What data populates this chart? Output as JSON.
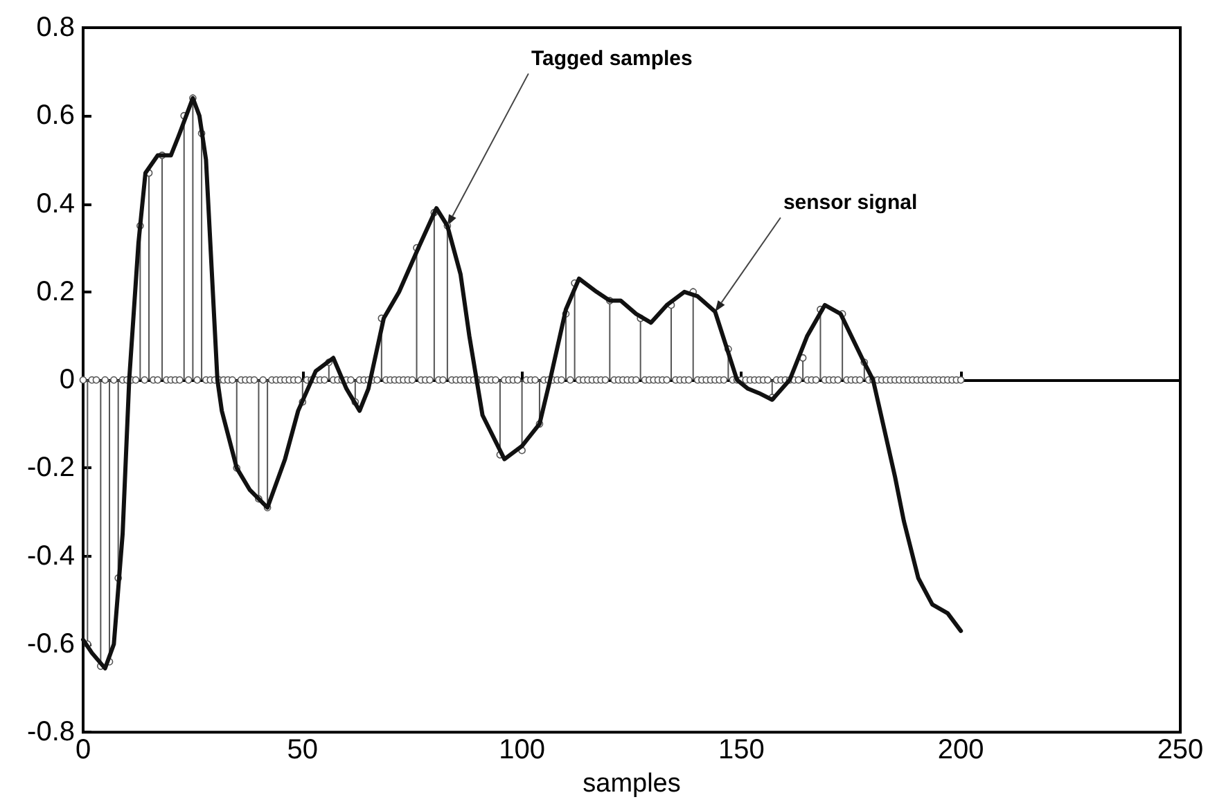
{
  "chart_data": {
    "type": "line",
    "xlabel": "samples",
    "xlim": [
      0,
      250
    ],
    "xticks": [
      0,
      50,
      100,
      150,
      200,
      250
    ],
    "ylim": [
      -0.8,
      0.8
    ],
    "yticks": [
      -0.8,
      -0.6,
      -0.4,
      -0.2,
      0,
      0.2,
      0.4,
      0.6,
      0.8
    ],
    "annotations": [
      {
        "text": "Tagged samples",
        "x": 83,
        "y": 0.35
      },
      {
        "text": "sensor signal",
        "x": 144,
        "y": 0.155
      }
    ],
    "series": [
      {
        "type": "lollipop",
        "color": "#555555",
        "marker": "circle",
        "x": [
          0,
          1,
          2,
          3,
          4,
          5,
          6,
          7,
          8,
          9,
          10,
          11,
          12,
          13,
          14,
          15,
          16,
          17,
          18,
          19,
          20,
          21,
          22,
          23,
          24,
          25,
          26,
          27,
          28,
          29,
          30,
          31,
          32,
          33,
          34,
          35,
          36,
          37,
          38,
          39,
          40,
          41,
          42,
          43,
          44,
          45,
          46,
          47,
          48,
          49,
          50,
          51,
          52,
          53,
          54,
          55,
          56,
          57,
          58,
          59,
          60,
          61,
          62,
          63,
          64,
          65,
          66,
          67,
          68,
          69,
          70,
          71,
          72,
          73,
          74,
          75,
          76,
          77,
          78,
          79,
          80,
          81,
          82,
          83,
          84,
          85,
          86,
          87,
          88,
          89,
          90,
          91,
          92,
          93,
          94,
          95,
          96,
          97,
          98,
          99,
          100,
          101,
          102,
          103,
          104,
          105,
          106,
          107,
          108,
          109,
          110,
          111,
          112,
          113,
          114,
          115,
          116,
          117,
          118,
          119,
          120,
          121,
          122,
          123,
          124,
          125,
          126,
          127,
          128,
          129,
          130,
          131,
          132,
          133,
          134,
          135,
          136,
          137,
          138,
          139,
          140,
          141,
          142,
          143,
          144,
          145,
          146,
          147,
          148,
          149,
          150,
          151,
          152,
          153,
          154,
          155,
          156,
          157,
          158,
          159,
          160,
          161,
          162,
          163,
          164,
          165,
          166,
          167,
          168,
          169,
          170,
          171,
          172,
          173,
          174,
          175,
          176,
          177,
          178,
          179,
          180,
          181,
          182,
          183,
          184,
          185,
          186,
          187,
          188,
          189,
          190,
          191,
          192,
          193,
          194,
          195,
          196,
          197,
          198,
          199,
          200
        ],
        "values": [
          0,
          -0.6,
          0,
          0,
          -0.65,
          0,
          -0.64,
          0,
          -0.45,
          0,
          0,
          0,
          0,
          0.35,
          0,
          0.47,
          0,
          0,
          0.51,
          0,
          0,
          0,
          0,
          0.6,
          0,
          0.64,
          0,
          0.56,
          0,
          0,
          0,
          0,
          0,
          0,
          0,
          -0.2,
          0,
          0,
          0,
          0,
          -0.27,
          0,
          -0.29,
          0,
          0,
          0,
          0,
          0,
          0,
          0,
          -0.05,
          0,
          0,
          0,
          0,
          0,
          0.04,
          0,
          0,
          0,
          0,
          0,
          -0.05,
          0,
          0,
          0,
          0,
          0,
          0.14,
          0,
          0,
          0,
          0,
          0,
          0,
          0,
          0.3,
          0,
          0,
          0,
          0.38,
          0,
          0,
          0.35,
          0,
          0,
          0,
          0,
          0,
          0,
          0,
          0,
          0,
          0,
          0,
          -0.17,
          0,
          0,
          0,
          0,
          -0.16,
          0,
          0,
          0,
          -0.1,
          0,
          0,
          0,
          0,
          0,
          0.15,
          0,
          0.22,
          0,
          0,
          0,
          0,
          0,
          0,
          0,
          0.18,
          0,
          0,
          0,
          0,
          0,
          0,
          0.14,
          0,
          0,
          0,
          0,
          0,
          0,
          0.17,
          0,
          0,
          0,
          0,
          0.2,
          0,
          0,
          0,
          0,
          0,
          0,
          0,
          0.07,
          0,
          0,
          0,
          0,
          0,
          0,
          0,
          0,
          0,
          -0.04,
          0,
          0,
          0,
          0,
          0,
          0,
          0.05,
          0,
          0,
          0,
          0.16,
          0,
          0,
          0,
          0,
          0.15,
          0,
          0,
          0,
          0,
          0.04,
          0,
          0,
          0,
          0,
          0,
          0,
          0,
          0,
          0,
          0,
          0,
          0,
          0,
          0,
          0,
          0,
          0,
          0,
          0,
          0,
          0,
          0
        ]
      },
      {
        "color": "#111111",
        "marker": "none",
        "x": [
          0,
          2,
          5,
          7,
          9,
          10.5,
          12.6,
          14.2,
          17,
          20,
          22,
          25,
          26.5,
          28,
          30.6,
          31.6,
          35,
          38,
          42,
          46,
          49,
          53,
          57,
          60,
          63,
          65,
          68.5,
          72,
          76.4,
          80.5,
          83,
          86,
          88,
          91,
          96,
          100,
          104,
          106.4,
          110,
          113,
          117,
          120,
          122.5,
          126,
          129.4,
          133,
          137,
          140,
          144,
          149,
          151.5,
          154,
          157,
          161,
          165,
          169,
          172.6,
          177.7,
          180,
          185,
          187,
          190.3,
          193.5,
          197,
          200
        ],
        "values": [
          -0.59,
          -0.62,
          -0.655,
          -0.6,
          -0.35,
          0,
          0.31,
          0.47,
          0.51,
          0.51,
          0.56,
          0.64,
          0.6,
          0.5,
          0,
          -0.07,
          -0.2,
          -0.25,
          -0.29,
          -0.18,
          -0.07,
          0.02,
          0.05,
          -0.02,
          -0.07,
          -0.02,
          0.14,
          0.2,
          0.3,
          0.39,
          0.35,
          0.24,
          0.1,
          -0.08,
          -0.18,
          -0.15,
          -0.1,
          0,
          0.16,
          0.23,
          0.2,
          0.18,
          0.18,
          0.15,
          0.13,
          0.17,
          0.2,
          0.19,
          0.155,
          0,
          -0.02,
          -0.03,
          -0.045,
          0,
          0.1,
          0.17,
          0.15,
          0.045,
          0,
          -0.22,
          -0.32,
          -0.45,
          -0.51,
          -0.53,
          -0.57
        ]
      }
    ]
  }
}
